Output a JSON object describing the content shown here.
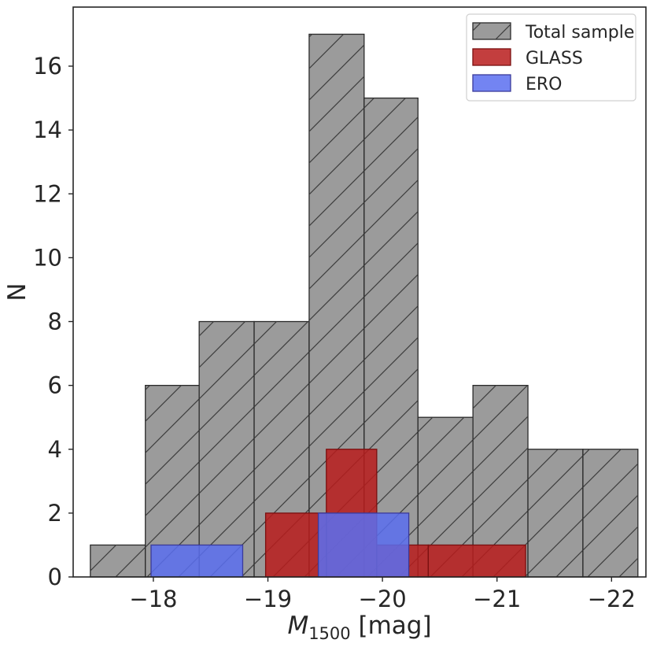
{
  "chart_data": {
    "type": "histogram",
    "xlabel_main": "M",
    "xlabel_sub": "1500",
    "xlabel_unit": " [mag]",
    "ylabel": "N",
    "xlim": [
      -17.3,
      -22.3
    ],
    "ylim": [
      0,
      17.85
    ],
    "x_ticks": [
      -18,
      -19,
      -20,
      -21,
      -22
    ],
    "x_tick_labels": [
      "−18",
      "−19",
      "−20",
      "−21",
      "−22"
    ],
    "y_ticks": [
      0,
      2,
      4,
      6,
      8,
      10,
      12,
      14,
      16
    ],
    "y_tick_labels": [
      "0",
      "2",
      "4",
      "6",
      "8",
      "10",
      "12",
      "14",
      "16"
    ],
    "legend_position": "top-right",
    "series": [
      {
        "name": "Total sample",
        "color": "#9b9b9b",
        "edge": "#2a2a2a",
        "hatch": true,
        "edges": [
          -17.45,
          -17.93,
          -18.4,
          -18.88,
          -19.36,
          -19.84,
          -20.31,
          -20.79,
          -21.27,
          -21.75,
          -22.23
        ],
        "counts": [
          1,
          6,
          8,
          8,
          17,
          15,
          5,
          6,
          4,
          4
        ]
      },
      {
        "name": "GLASS",
        "color": "#b81c1c",
        "edge": "#7a1010",
        "hatch": false,
        "edges": [
          -18.98,
          -19.51,
          -19.95,
          -20.4,
          -21.25
        ],
        "counts": [
          2,
          4,
          1,
          1
        ]
      },
      {
        "name": "ERO",
        "color": "#5a6ef0",
        "edge": "#3a3a9a",
        "hatch": false,
        "edges": [
          -17.98,
          -18.78,
          -19.44,
          -20.23
        ],
        "counts": [
          1,
          0,
          2
        ]
      }
    ]
  }
}
